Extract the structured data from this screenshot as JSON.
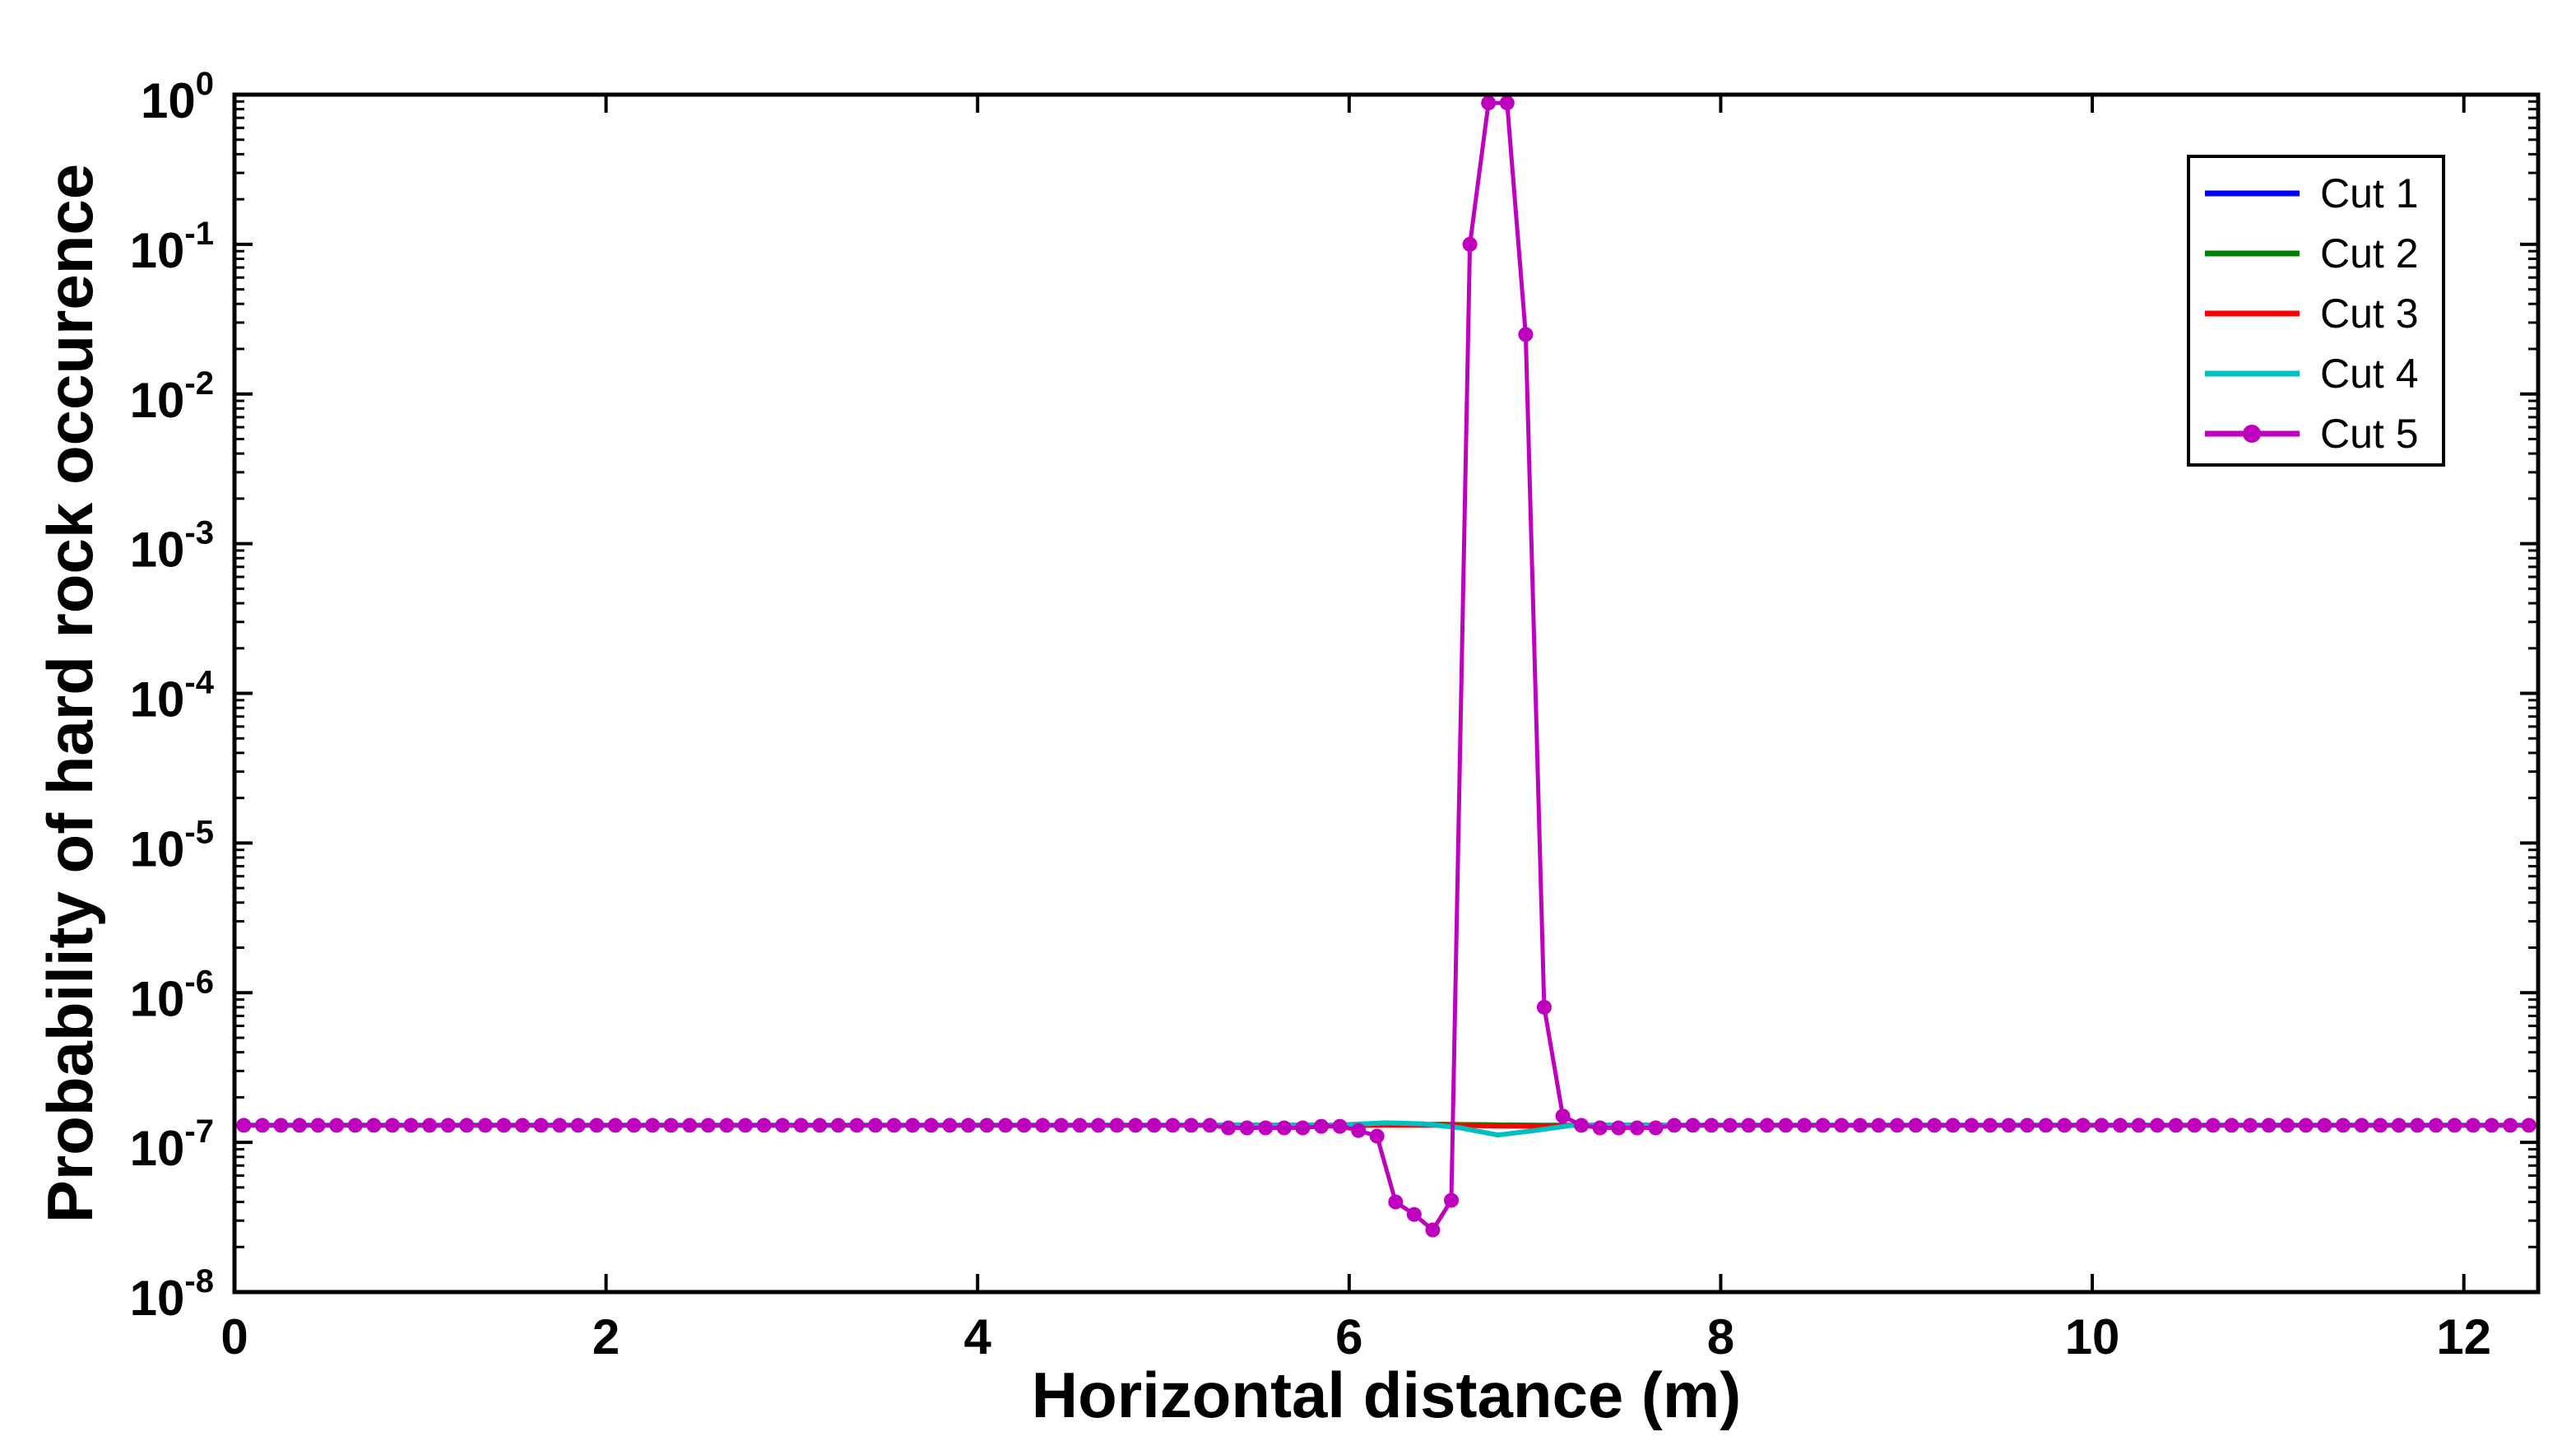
{
  "chart_data": {
    "type": "line",
    "xlabel": "Horizontal distance (m)",
    "ylabel": "Probability of hard rock occurence",
    "xlim": [
      0,
      12.4
    ],
    "ylim": [
      1e-08,
      1
    ],
    "yscale": "log",
    "grid": false,
    "legend_position": "top-right",
    "x_ticks": [
      0,
      2,
      4,
      6,
      8,
      10,
      12
    ],
    "x_tick_labels": [
      "0",
      "2",
      "4",
      "6",
      "8",
      "10",
      "12"
    ],
    "y_ticks": [
      -8,
      -7,
      -6,
      -5,
      -4,
      -3,
      -2,
      -1,
      0
    ],
    "y_tick_base": "10",
    "y_tick_exponents": [
      "-8",
      "-7",
      "-6",
      "-5",
      "-4",
      "-3",
      "-2",
      "-1",
      "0"
    ],
    "series": [
      {
        "name": "Cut 1",
        "color": "#0000ff",
        "marker": "none",
        "points": [
          [
            0.05,
            1.3e-07
          ],
          [
            6.0,
            1.3e-07
          ],
          [
            6.5,
            1.32e-07
          ],
          [
            7.0,
            1.3e-07
          ],
          [
            12.35,
            1.3e-07
          ]
        ]
      },
      {
        "name": "Cut 2",
        "color": "#008000",
        "marker": "none",
        "points": [
          [
            0.05,
            1.3e-07
          ],
          [
            6.0,
            1.3e-07
          ],
          [
            6.5,
            1.32e-07
          ],
          [
            7.0,
            1.3e-07
          ],
          [
            12.35,
            1.3e-07
          ]
        ]
      },
      {
        "name": "Cut 3",
        "color": "#ff0000",
        "marker": "none",
        "points": [
          [
            0.05,
            1.3e-07
          ],
          [
            6.0,
            1.3e-07
          ],
          [
            6.5,
            1.3e-07
          ],
          [
            7.0,
            1.28e-07
          ],
          [
            7.2,
            1.3e-07
          ],
          [
            12.35,
            1.3e-07
          ]
        ]
      },
      {
        "name": "Cut 4",
        "color": "#00bfbf",
        "marker": "none",
        "points": [
          [
            0.05,
            1.3e-07
          ],
          [
            5.9,
            1.3e-07
          ],
          [
            6.2,
            1.35e-07
          ],
          [
            6.4,
            1.33e-07
          ],
          [
            6.6,
            1.25e-07
          ],
          [
            6.8,
            1.12e-07
          ],
          [
            7.0,
            1.2e-07
          ],
          [
            7.2,
            1.3e-07
          ],
          [
            12.35,
            1.3e-07
          ]
        ]
      },
      {
        "name": "Cut 5",
        "color": "#bf00bf",
        "marker": "circle",
        "step": 0.1,
        "x_start": 0.05,
        "x_end": 12.35,
        "baseline": 1.3e-07,
        "points": [
          [
            5.35,
            1.25e-07
          ],
          [
            5.45,
            1.25e-07
          ],
          [
            5.55,
            1.25e-07
          ],
          [
            5.65,
            1.25e-07
          ],
          [
            5.75,
            1.25e-07
          ],
          [
            5.85,
            1.28e-07
          ],
          [
            5.95,
            1.28e-07
          ],
          [
            6.05,
            1.2e-07
          ],
          [
            6.15,
            1.1e-07
          ],
          [
            6.25,
            4e-08
          ],
          [
            6.35,
            3.3e-08
          ],
          [
            6.45,
            2.6e-08
          ],
          [
            6.55,
            4.1e-08
          ],
          [
            6.65,
            0.1
          ],
          [
            6.75,
            0.88
          ],
          [
            6.85,
            0.88
          ],
          [
            6.95,
            0.025
          ],
          [
            7.05,
            8e-07
          ],
          [
            7.15,
            1.5e-07
          ],
          [
            7.25,
            1.3e-07
          ],
          [
            7.35,
            1.25e-07
          ],
          [
            7.45,
            1.25e-07
          ],
          [
            7.55,
            1.25e-07
          ],
          [
            7.65,
            1.25e-07
          ]
        ]
      }
    ]
  }
}
